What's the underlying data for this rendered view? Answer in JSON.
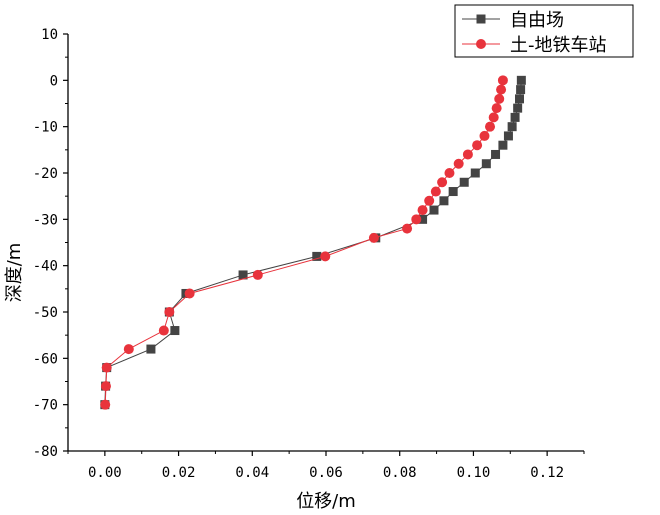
{
  "chart_data": {
    "type": "line",
    "xlabel": "位移/m",
    "ylabel": "深度/m",
    "xlim": [
      -0.01,
      0.13
    ],
    "ylim": [
      -80,
      10
    ],
    "xticks": [
      "0.00",
      "0.02",
      "0.04",
      "0.06",
      "0.08",
      "0.10",
      "0.12"
    ],
    "yticks": [
      "10",
      "0",
      "-10",
      "-20",
      "-30",
      "-40",
      "-50",
      "-60",
      "-70",
      "-80"
    ],
    "grid": false,
    "legend_position": "top-right",
    "series": [
      {
        "name": "自由场",
        "color": "#444444",
        "marker": "square",
        "x": [
          0.113,
          0.1128,
          0.1125,
          0.112,
          0.1113,
          0.1105,
          0.1095,
          0.108,
          0.106,
          0.1035,
          0.1005,
          0.0975,
          0.0945,
          0.092,
          0.0893,
          0.0862,
          0.0735,
          0.0575,
          0.0375,
          0.022,
          0.0175,
          0.019,
          0.0125,
          0.0005,
          0.0002,
          0.0
        ],
        "y": [
          0,
          -2,
          -4,
          -6,
          -8,
          -10,
          -12,
          -14,
          -16,
          -18,
          -20,
          -22,
          -24,
          -26,
          -28,
          -30,
          -34,
          -38,
          -42,
          -46,
          -50,
          -54,
          -58,
          -62,
          -66,
          -70
        ]
      },
      {
        "name": "土-地铁车站",
        "color": "#e8333c",
        "marker": "circle",
        "x": [
          0.108,
          0.1075,
          0.107,
          0.1063,
          0.1055,
          0.1045,
          0.103,
          0.101,
          0.0985,
          0.096,
          0.0935,
          0.0915,
          0.0898,
          0.088,
          0.0862,
          0.0845,
          0.082,
          0.073,
          0.0598,
          0.0415,
          0.023,
          0.0175,
          0.016,
          0.0065,
          0.0005,
          0.0003,
          0.0001
        ],
        "y": [
          0,
          -2,
          -4,
          -6,
          -8,
          -10,
          -12,
          -14,
          -16,
          -18,
          -20,
          -22,
          -24,
          -26,
          -28,
          -30,
          -32,
          -34,
          -38,
          -42,
          -46,
          -50,
          -54,
          -58,
          -62,
          -66,
          -70
        ]
      }
    ]
  }
}
